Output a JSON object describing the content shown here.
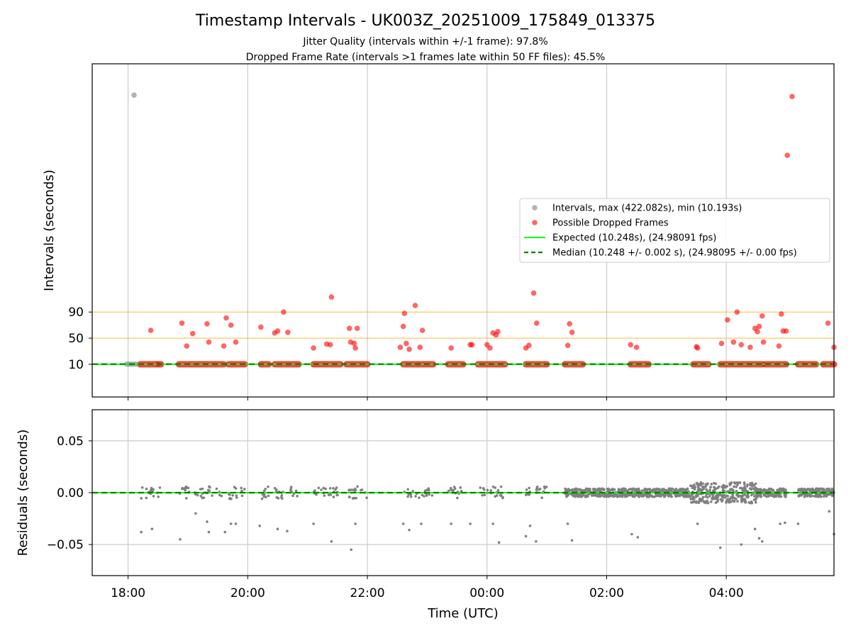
{
  "chart_data": {
    "type": "scatter",
    "title": "Timestamp Intervals - UK003Z_20251009_175849_013375",
    "subtitle_lines": [
      "Jitter Quality (intervals within +/-1 frame): 97.8%",
      "Dropped Frame Rate (intervals >1 frames late within 50 FF files): 45.5%"
    ],
    "xlabel": "Time (UTC)",
    "x_unit": "hours since 18:00 UTC",
    "xlim": [
      -0.6,
      11.8
    ],
    "xticks": [
      {
        "x": 0,
        "label": "18:00"
      },
      {
        "x": 2,
        "label": "20:00"
      },
      {
        "x": 4,
        "label": "22:00"
      },
      {
        "x": 6,
        "label": "00:00"
      },
      {
        "x": 8,
        "label": "02:00"
      },
      {
        "x": 10,
        "label": "04:00"
      }
    ],
    "colors": {
      "intervals": "#808080",
      "dropped": "#ff0000",
      "expected": "#00ff00",
      "median": "#008000",
      "threshold": "#ffa500",
      "residuals": "#808080",
      "grid": "#cccccc"
    },
    "panels": [
      {
        "id": "intervals",
        "ylabel": "Intervals (seconds)",
        "ylim": [
          -40,
          470
        ],
        "yticks": [
          10,
          50,
          90
        ],
        "threshold_lines": [
          50,
          90
        ],
        "expected_y": 10.248,
        "median_y": 10.248,
        "legend": [
          {
            "marker": "gray-dot",
            "label": "Intervals, max (422.082s), min (10.193s)"
          },
          {
            "marker": "red-dot",
            "label": "Possible Dropped Frames"
          },
          {
            "marker": "green-line",
            "label": "Expected (10.248s), (24.98091 fps)"
          },
          {
            "marker": "darkgreen-dash",
            "label": "Median (10.248 +/- 0.002 s), (24.98095 +/- 0.00 fps)"
          }
        ],
        "gray_points": [
          [
            0.1,
            422.082
          ],
          [
            -0.02,
            10.2
          ],
          [
            0.03,
            10.2
          ],
          [
            0.08,
            10.2
          ],
          [
            0.13,
            10.2
          ]
        ],
        "red_points": [
          [
            0.38,
            62
          ],
          [
            0.5,
            10.2
          ],
          [
            0.9,
            73
          ],
          [
            0.98,
            38
          ],
          [
            1.08,
            57
          ],
          [
            1.32,
            72
          ],
          [
            1.35,
            44
          ],
          [
            1.6,
            38
          ],
          [
            1.64,
            81
          ],
          [
            1.72,
            70
          ],
          [
            1.8,
            44
          ],
          [
            2.22,
            67
          ],
          [
            2.45,
            58
          ],
          [
            2.5,
            61
          ],
          [
            2.6,
            90
          ],
          [
            2.67,
            59
          ],
          [
            3.1,
            35
          ],
          [
            3.32,
            41
          ],
          [
            3.38,
            40
          ],
          [
            3.4,
            113
          ],
          [
            3.7,
            65
          ],
          [
            3.72,
            44
          ],
          [
            3.78,
            42
          ],
          [
            3.8,
            35
          ],
          [
            3.83,
            65
          ],
          [
            4.55,
            36
          ],
          [
            4.6,
            68
          ],
          [
            4.62,
            88
          ],
          [
            4.65,
            42
          ],
          [
            4.7,
            33
          ],
          [
            4.8,
            100
          ],
          [
            4.88,
            36
          ],
          [
            4.92,
            62
          ],
          [
            5.4,
            35
          ],
          [
            5.72,
            40
          ],
          [
            5.75,
            40
          ],
          [
            6.0,
            40
          ],
          [
            6.05,
            35
          ],
          [
            6.1,
            58
          ],
          [
            6.15,
            55
          ],
          [
            6.18,
            60
          ],
          [
            6.65,
            35
          ],
          [
            6.7,
            39
          ],
          [
            6.78,
            119
          ],
          [
            6.83,
            73
          ],
          [
            7.35,
            39
          ],
          [
            7.38,
            72
          ],
          [
            7.42,
            59
          ],
          [
            8.4,
            40
          ],
          [
            8.5,
            36
          ],
          [
            9.5,
            37
          ],
          [
            9.52,
            35
          ],
          [
            9.92,
            42
          ],
          [
            10.02,
            78
          ],
          [
            10.12,
            44
          ],
          [
            10.18,
            90
          ],
          [
            10.25,
            40
          ],
          [
            10.4,
            36
          ],
          [
            10.48,
            65
          ],
          [
            10.52,
            60
          ],
          [
            10.55,
            68
          ],
          [
            10.6,
            84
          ],
          [
            10.62,
            44
          ],
          [
            10.88,
            38
          ],
          [
            10.92,
            87
          ],
          [
            10.95,
            61
          ],
          [
            11.0,
            61
          ],
          [
            11.02,
            330
          ],
          [
            11.1,
            420
          ],
          [
            11.7,
            73
          ],
          [
            11.8,
            36
          ]
        ],
        "red_baseline_segments": [
          [
            0.2,
            0.55
          ],
          [
            0.85,
            1.6
          ],
          [
            1.68,
            1.95
          ],
          [
            2.22,
            2.35
          ],
          [
            2.45,
            2.85
          ],
          [
            3.1,
            3.55
          ],
          [
            3.65,
            4.0
          ],
          [
            4.6,
            5.1
          ],
          [
            5.35,
            5.6
          ],
          [
            5.85,
            6.3
          ],
          [
            6.65,
            7.0
          ],
          [
            7.3,
            7.6
          ],
          [
            8.4,
            8.7
          ],
          [
            9.45,
            9.7
          ],
          [
            9.9,
            10.6
          ],
          [
            10.65,
            11.0
          ],
          [
            11.2,
            11.5
          ],
          [
            11.62,
            11.8
          ]
        ]
      },
      {
        "id": "residuals",
        "ylabel": "Residuals (seconds)",
        "ylim": [
          -0.08,
          0.08
        ],
        "yticks": [
          {
            "y": 0.05,
            "label": "0.05"
          },
          {
            "y": 0.0,
            "label": "0.00"
          },
          {
            "y": -0.05,
            "label": "−0.05"
          }
        ],
        "outliers": [
          [
            0.22,
            -0.038
          ],
          [
            0.4,
            -0.035
          ],
          [
            0.87,
            -0.045
          ],
          [
            1.13,
            -0.02
          ],
          [
            1.32,
            -0.028
          ],
          [
            1.35,
            -0.038
          ],
          [
            1.62,
            -0.038
          ],
          [
            1.72,
            -0.03
          ],
          [
            1.8,
            -0.03
          ],
          [
            2.2,
            -0.032
          ],
          [
            2.5,
            -0.035
          ],
          [
            2.66,
            -0.037
          ],
          [
            3.1,
            -0.03
          ],
          [
            3.4,
            -0.047
          ],
          [
            3.73,
            -0.055
          ],
          [
            3.8,
            -0.03
          ],
          [
            4.6,
            -0.03
          ],
          [
            4.7,
            -0.036
          ],
          [
            4.9,
            -0.03
          ],
          [
            5.4,
            -0.03
          ],
          [
            5.72,
            -0.03
          ],
          [
            6.1,
            -0.03
          ],
          [
            6.2,
            -0.048
          ],
          [
            6.65,
            -0.042
          ],
          [
            6.72,
            -0.032
          ],
          [
            6.82,
            -0.047
          ],
          [
            7.35,
            -0.03
          ],
          [
            7.42,
            -0.046
          ],
          [
            8.42,
            -0.04
          ],
          [
            8.52,
            -0.043
          ],
          [
            9.52,
            -0.03
          ],
          [
            9.9,
            -0.053
          ],
          [
            10.25,
            -0.05
          ],
          [
            10.48,
            -0.035
          ],
          [
            10.55,
            -0.044
          ],
          [
            10.6,
            -0.047
          ],
          [
            10.9,
            -0.03
          ],
          [
            10.98,
            -0.029
          ],
          [
            11.2,
            -0.03
          ],
          [
            11.72,
            -0.018
          ],
          [
            11.8,
            -0.04
          ]
        ],
        "dense_bands": [
          {
            "x0": 7.3,
            "x1": 9.4,
            "spread": 0.004
          },
          {
            "x0": 9.4,
            "x1": 10.5,
            "spread": 0.01
          },
          {
            "x0": 10.5,
            "x1": 11.0,
            "spread": 0.004
          },
          {
            "x0": 11.2,
            "x1": 11.8,
            "spread": 0.004
          }
        ]
      }
    ]
  }
}
